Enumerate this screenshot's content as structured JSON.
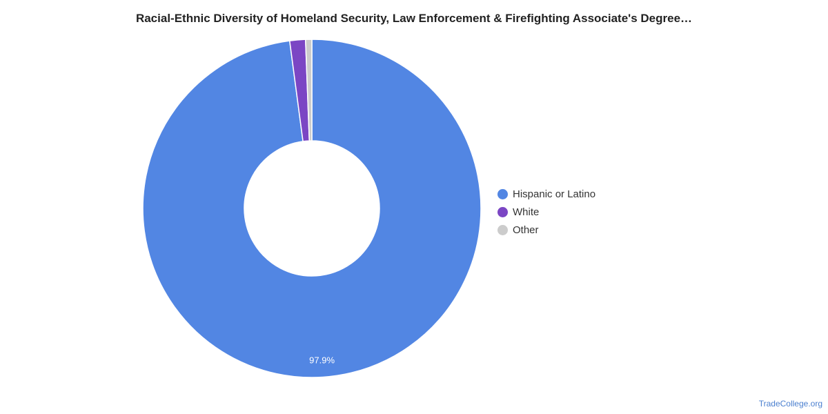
{
  "chart_data": {
    "type": "pie",
    "title": "Racial-Ethnic Diversity of Homeland Security, Law Enforcement & Firefighting Associate's Degree…",
    "donut": true,
    "legend_position": "right",
    "categories": [
      "Hispanic or Latino",
      "White",
      "Other"
    ],
    "values": [
      97.9,
      1.5,
      0.6
    ],
    "value_labels": [
      "97.9%",
      "",
      ""
    ],
    "colors": [
      "#5286e3",
      "#7b46c4",
      "#cccccc"
    ]
  },
  "source": "TradeCollege.org"
}
